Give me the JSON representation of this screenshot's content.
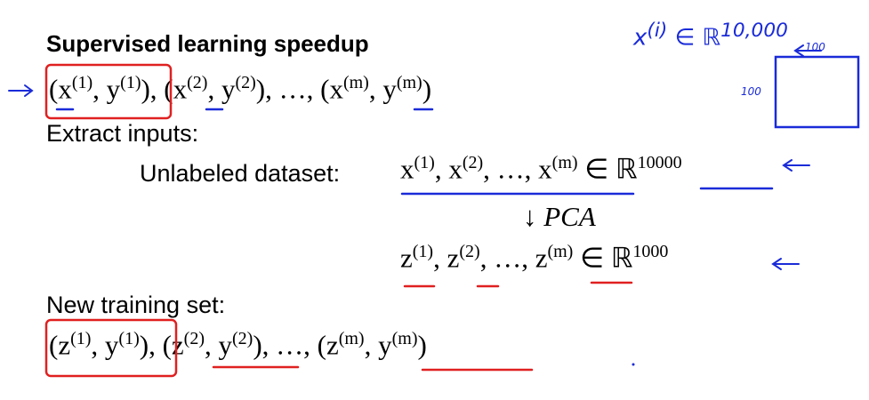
{
  "slide": {
    "title": "Supervised learning speedup",
    "line1": [
      [
        "(x",
        "(1)"
      ],
      [
        ", y",
        "(1)"
      ],
      [
        "), (x",
        "(2)"
      ],
      [
        ", y",
        "(2)"
      ],
      [
        "), …, (x",
        "(m)"
      ],
      [
        ", y",
        "(m)"
      ],
      [
        ")"
      ]
    ],
    "extract": "Extract inputs:",
    "unlabeled_label": "Unlabeled dataset:",
    "unlabeled_math": [
      [
        "x",
        "(1)"
      ],
      [
        ", x",
        "(2)"
      ],
      [
        ", …, x",
        "(m)"
      ],
      [
        " ∈ ℝ",
        "10000"
      ]
    ],
    "pca": "↓ PCA",
    "z_math": [
      [
        "z",
        "(1)"
      ],
      [
        ", z",
        "(2)"
      ],
      [
        ", …, z",
        "(m)"
      ],
      [
        " ∈ ℝ",
        "1000"
      ]
    ],
    "new_set": "New training set:",
    "new_math": [
      [
        "(z",
        "(1)"
      ],
      [
        ", y",
        "(1)"
      ],
      [
        "), (z",
        "(2)"
      ],
      [
        ", y",
        "(2)"
      ],
      [
        "), …, (z",
        "(m)"
      ],
      [
        ", y",
        "(m)"
      ],
      [
        ")"
      ]
    ]
  },
  "handwriting": {
    "dim": [
      [
        "x",
        "(i)"
      ],
      [
        " ∈ ℝ",
        "10,000"
      ]
    ],
    "box_top": "100",
    "box_left": "100"
  }
}
